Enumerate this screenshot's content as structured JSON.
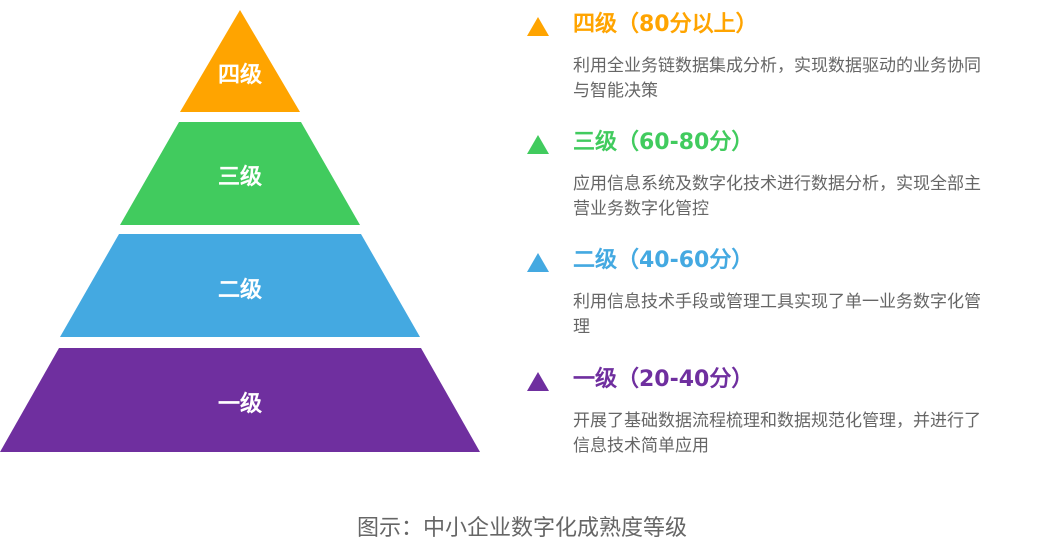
{
  "colors": {
    "level4": "#FFA400",
    "level3": "#41CB5E",
    "level2": "#44A9E1",
    "level1": "#6F2F9F",
    "text": "#666666"
  },
  "pyramid": [
    "四级",
    "三级",
    "二级",
    "一级"
  ],
  "levels": [
    {
      "title": "四级（80分以上）",
      "desc": "利用全业务链数据集成分析，实现数据驱动的业务协同与智能决策"
    },
    {
      "title": "三级（60-80分）",
      "desc": "应用信息系统及数字化技术进行数据分析，实现全部主营业务数字化管控"
    },
    {
      "title": "二级（40-60分）",
      "desc": "利用信息技术手段或管理工具实现了单一业务数字化管理"
    },
    {
      "title": "一级（20-40分）",
      "desc": "开展了基础数据流程梳理和数据规范化管理，并进行了信息技术简单应用"
    }
  ],
  "caption": "图示：中小企业数字化成熟度等级"
}
